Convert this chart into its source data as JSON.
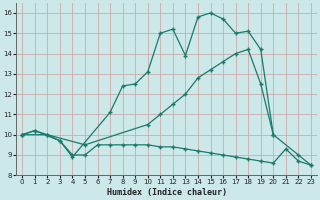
{
  "xlabel": "Humidex (Indice chaleur)",
  "bg_color": "#cce8e8",
  "grid_color": "#b8d8d8",
  "line_color": "#1a7a6a",
  "xlim": [
    -0.5,
    23.5
  ],
  "ylim": [
    8,
    16.5
  ],
  "xticks": [
    0,
    1,
    2,
    3,
    4,
    5,
    6,
    7,
    8,
    9,
    10,
    11,
    12,
    13,
    14,
    15,
    16,
    17,
    18,
    19,
    20,
    21,
    22,
    23
  ],
  "yticks": [
    8,
    9,
    10,
    11,
    12,
    13,
    14,
    15,
    16
  ],
  "line_peak": {
    "x": [
      0,
      1,
      3,
      4,
      7,
      8,
      9,
      10,
      11,
      12,
      13,
      14,
      15,
      16,
      17,
      18,
      19,
      20
    ],
    "y": [
      10,
      10.2,
      9.7,
      8.9,
      11.1,
      12.4,
      12.5,
      13.1,
      15.0,
      15.2,
      13.9,
      15.8,
      16.0,
      15.7,
      15.0,
      15.1,
      14.2,
      10.0
    ]
  },
  "line_diag": {
    "x": [
      0,
      2,
      5,
      10,
      11,
      12,
      13,
      14,
      15,
      16,
      17,
      18,
      19,
      20,
      22,
      23
    ],
    "y": [
      10,
      10,
      9.5,
      10.5,
      11.0,
      11.5,
      12.0,
      12.8,
      13.2,
      13.6,
      14.0,
      14.2,
      12.5,
      10.0,
      9.0,
      8.5
    ]
  },
  "line_flat": {
    "x": [
      0,
      1,
      2,
      3,
      4,
      5,
      6,
      7,
      8,
      9,
      10,
      11,
      12,
      13,
      14,
      15,
      16,
      17,
      18,
      19,
      20,
      21,
      22,
      23
    ],
    "y": [
      10,
      10.2,
      10.0,
      9.7,
      9.0,
      9.0,
      9.5,
      9.5,
      9.5,
      9.5,
      9.5,
      9.4,
      9.4,
      9.3,
      9.2,
      9.1,
      9.0,
      8.9,
      8.8,
      8.7,
      8.6,
      9.3,
      8.7,
      8.5
    ]
  }
}
